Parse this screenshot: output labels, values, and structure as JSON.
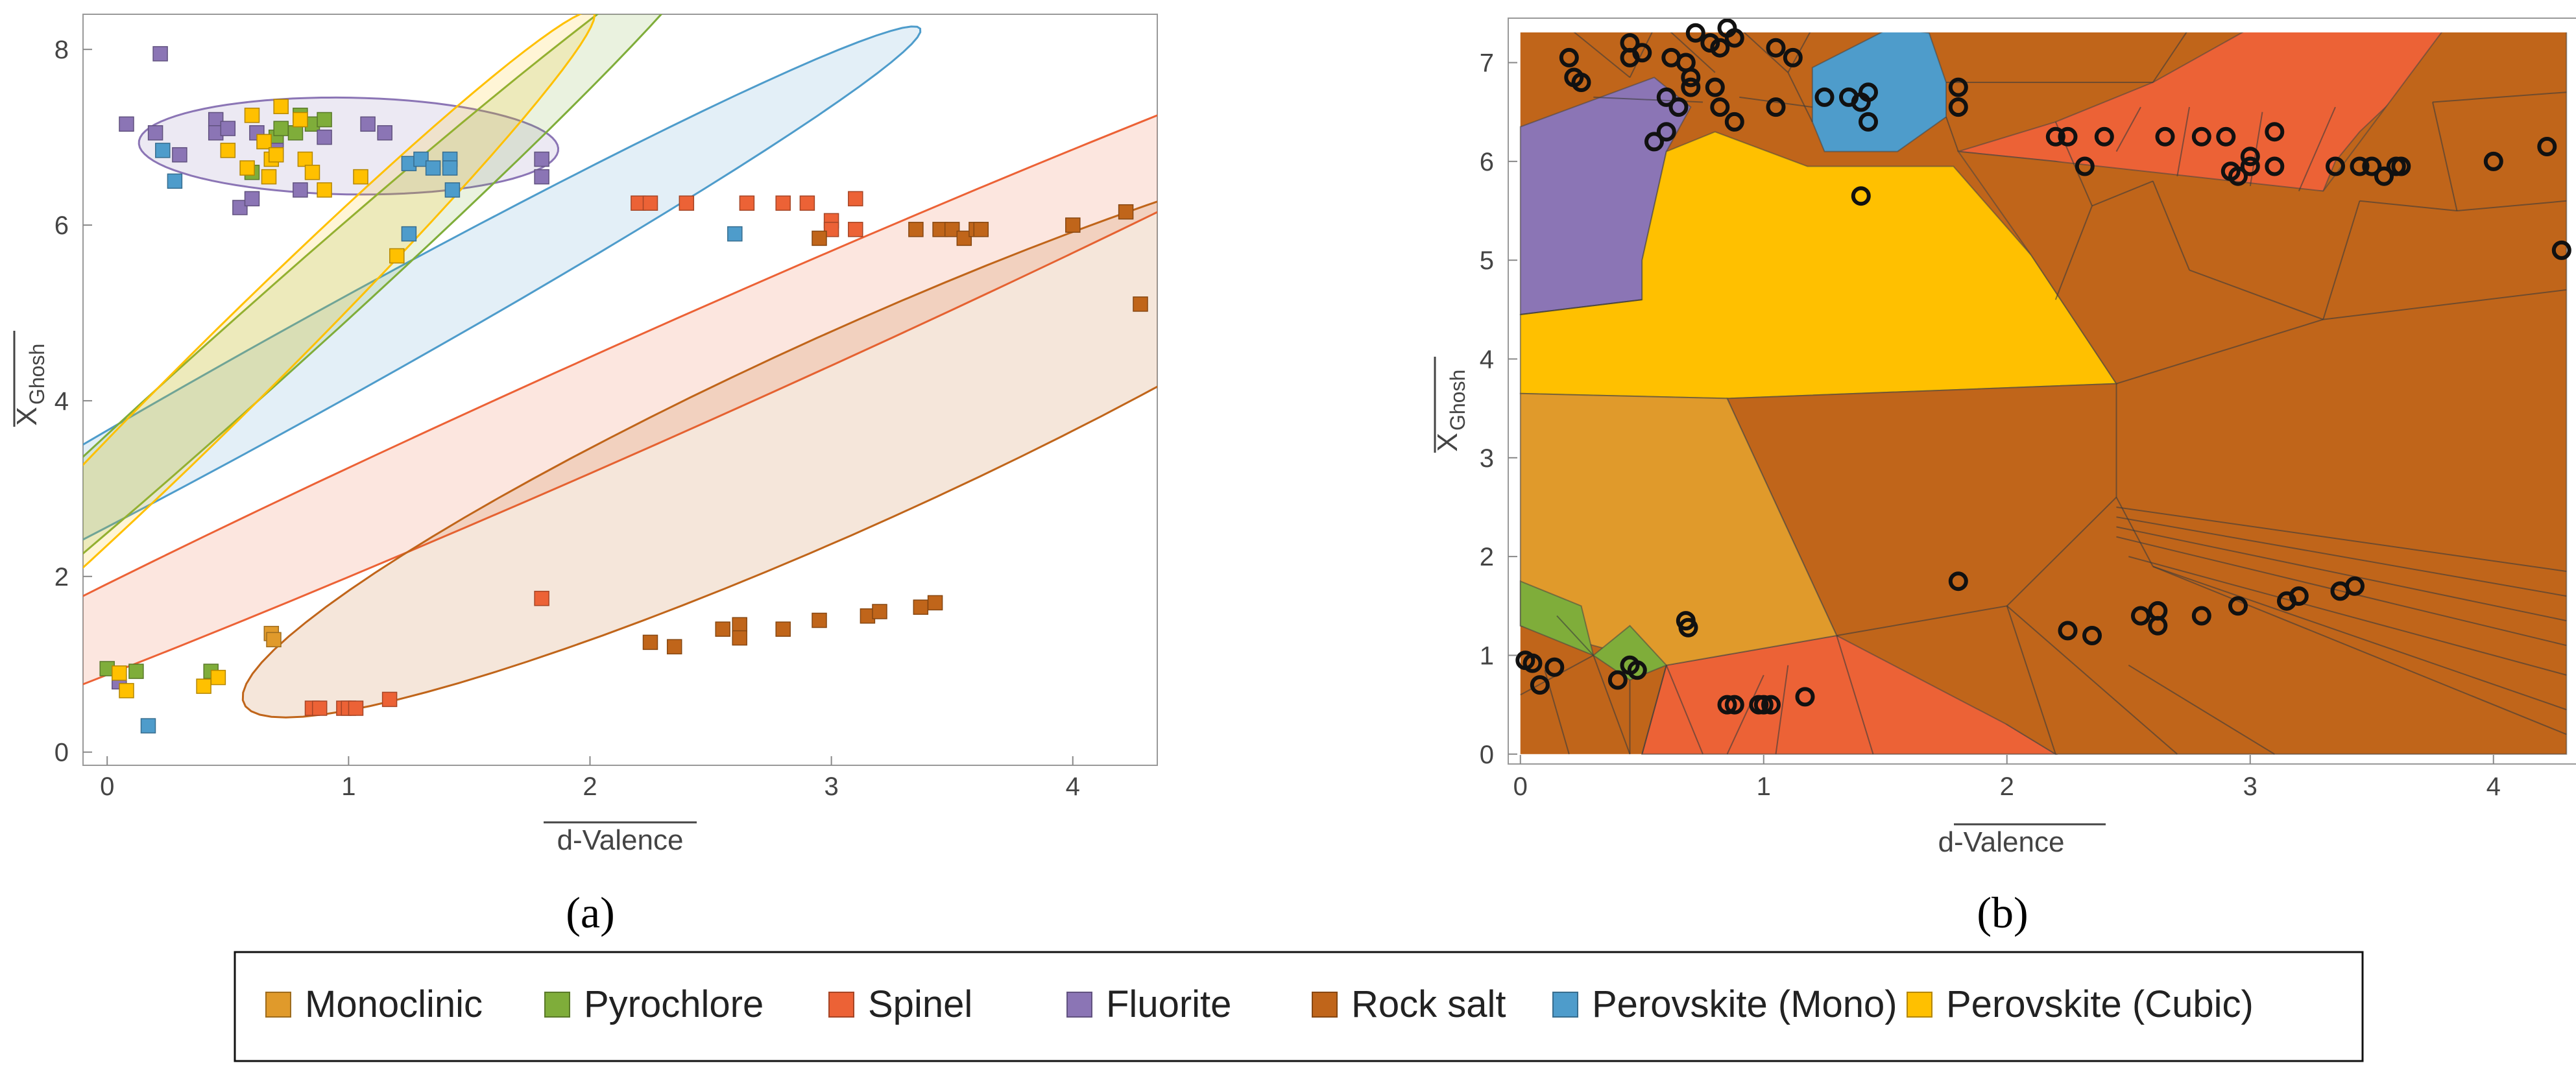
{
  "figure": {
    "panel_a_label": "(a)",
    "panel_b_label": "(b)",
    "x_label": "d-Valence",
    "y_label_main": "X",
    "y_label_sub": "Ghosh"
  },
  "legend": [
    {
      "key": "monoclinic",
      "label": "Monoclinic",
      "color": "#E09A2B"
    },
    {
      "key": "pyrochlore",
      "label": "Pyrochlore",
      "color": "#7FAD3A"
    },
    {
      "key": "spinel",
      "label": "Spinel",
      "color": "#EC6236"
    },
    {
      "key": "fluorite",
      "label": "Fluorite",
      "color": "#8B75B5"
    },
    {
      "key": "rocksalt",
      "label": "Rock salt",
      "color": "#C0651A"
    },
    {
      "key": "pmono",
      "label": "Perovskite (Mono)",
      "color": "#4E9CCB"
    },
    {
      "key": "pcubic",
      "label": "Perovskite (Cubic)",
      "color": "#FFC000"
    }
  ],
  "chart_data": [
    {
      "type": "scatter",
      "panel": "a",
      "title": "",
      "xlabel": "d-Valence",
      "ylabel": "X Ghosh",
      "xlim": [
        -0.1,
        4.35
      ],
      "ylim": [
        -0.15,
        8.4
      ],
      "x_ticks": [
        0,
        1,
        2,
        3,
        4
      ],
      "y_ticks": [
        0,
        2,
        4,
        6,
        8
      ],
      "confidence_ellipses": [
        {
          "class": "fluorite",
          "center": [
            1.0,
            6.9
          ],
          "semi_axes": [
            0.87,
            0.55
          ],
          "angle_deg": -4
        },
        {
          "class": "pmono",
          "center": [
            0.85,
            4.4
          ],
          "semi_axes": [
            4.6,
            0.32
          ],
          "angle_deg": 57
        },
        {
          "class": "pyrochlore",
          "center": [
            0.55,
            4.4
          ],
          "semi_axes": [
            5.2,
            0.22
          ],
          "angle_deg": 68
        },
        {
          "class": "pcubic",
          "center": [
            0.5,
            4.3
          ],
          "semi_axes": [
            4.4,
            0.22
          ],
          "angle_deg": 70
        },
        {
          "class": "spinel",
          "center": [
            2.3,
            4.2
          ],
          "semi_axes": [
            5.8,
            0.42
          ],
          "angle_deg": 51
        },
        {
          "class": "rocksalt",
          "center": [
            3.1,
            3.7
          ],
          "semi_axes": [
            4.1,
            0.75
          ],
          "angle_deg": 53
        }
      ],
      "series": [
        {
          "name": "Monoclinic",
          "points": [
            [
              0.68,
              1.35
            ],
            [
              0.69,
              1.28
            ]
          ]
        },
        {
          "name": "Pyrochlore",
          "points": [
            [
              0.0,
              0.95
            ],
            [
              0.12,
              0.92
            ],
            [
              0.43,
              0.92
            ],
            [
              0.65,
              6.95
            ],
            [
              0.7,
              7.0
            ],
            [
              0.72,
              7.1
            ],
            [
              0.78,
              7.05
            ],
            [
              0.8,
              7.25
            ],
            [
              0.85,
              7.15
            ],
            [
              0.9,
              7.2
            ],
            [
              0.6,
              6.6
            ]
          ]
        },
        {
          "name": "Spinel",
          "points": [
            [
              0.85,
              0.5
            ],
            [
              0.88,
              0.5
            ],
            [
              0.98,
              0.5
            ],
            [
              1.0,
              0.5
            ],
            [
              1.03,
              0.5
            ],
            [
              1.17,
              0.6
            ],
            [
              1.8,
              1.75
            ],
            [
              2.2,
              6.25
            ],
            [
              2.25,
              6.25
            ],
            [
              2.4,
              6.25
            ],
            [
              2.65,
              6.25
            ],
            [
              2.8,
              6.25
            ],
            [
              2.9,
              6.25
            ],
            [
              3.0,
              6.05
            ],
            [
              3.0,
              5.95
            ],
            [
              3.1,
              6.3
            ],
            [
              3.1,
              5.95
            ]
          ]
        },
        {
          "name": "Fluorite",
          "points": [
            [
              0.05,
              0.8
            ],
            [
              0.08,
              7.15
            ],
            [
              0.2,
              7.05
            ],
            [
              0.22,
              7.95
            ],
            [
              0.3,
              6.8
            ],
            [
              0.45,
              7.2
            ],
            [
              0.45,
              7.05
            ],
            [
              0.5,
              7.1
            ],
            [
              0.55,
              6.2
            ],
            [
              0.6,
              6.3
            ],
            [
              0.62,
              7.05
            ],
            [
              0.7,
              6.85
            ],
            [
              0.8,
              6.4
            ],
            [
              0.9,
              7.0
            ],
            [
              1.08,
              7.15
            ],
            [
              1.15,
              7.05
            ],
            [
              1.8,
              6.55
            ],
            [
              1.8,
              6.75
            ]
          ]
        },
        {
          "name": "Rock salt",
          "points": [
            [
              2.25,
              1.25
            ],
            [
              2.35,
              1.2
            ],
            [
              2.55,
              1.4
            ],
            [
              2.62,
              1.45
            ],
            [
              2.62,
              1.3
            ],
            [
              2.8,
              1.4
            ],
            [
              2.95,
              1.5
            ],
            [
              2.95,
              5.85
            ],
            [
              3.15,
              1.55
            ],
            [
              3.2,
              1.6
            ],
            [
              3.35,
              5.95
            ],
            [
              3.37,
              1.65
            ],
            [
              3.43,
              1.7
            ],
            [
              3.45,
              5.95
            ],
            [
              3.5,
              5.95
            ],
            [
              3.55,
              5.85
            ],
            [
              3.6,
              5.95
            ],
            [
              3.62,
              5.95
            ],
            [
              4.0,
              6.0
            ],
            [
              4.22,
              6.15
            ],
            [
              4.28,
              5.1
            ]
          ]
        },
        {
          "name": "Perovskite (Mono)",
          "points": [
            [
              0.17,
              0.3
            ],
            [
              0.23,
              6.85
            ],
            [
              0.28,
              6.5
            ],
            [
              1.25,
              5.9
            ],
            [
              1.25,
              6.7
            ],
            [
              1.3,
              6.75
            ],
            [
              1.35,
              6.65
            ],
            [
              1.42,
              6.75
            ],
            [
              1.42,
              6.65
            ],
            [
              1.43,
              6.4
            ],
            [
              2.6,
              5.9
            ]
          ]
        },
        {
          "name": "Perovskite (Cubic)",
          "points": [
            [
              0.05,
              0.9
            ],
            [
              0.08,
              0.7
            ],
            [
              0.4,
              0.75
            ],
            [
              0.46,
              0.85
            ],
            [
              0.5,
              6.85
            ],
            [
              0.58,
              6.65
            ],
            [
              0.6,
              7.25
            ],
            [
              0.65,
              6.95
            ],
            [
              0.67,
              6.55
            ],
            [
              0.68,
              6.75
            ],
            [
              0.7,
              6.8
            ],
            [
              0.72,
              7.35
            ],
            [
              0.8,
              7.2
            ],
            [
              0.82,
              6.75
            ],
            [
              0.85,
              6.6
            ],
            [
              0.9,
              6.4
            ],
            [
              1.05,
              6.55
            ],
            [
              1.2,
              5.65
            ]
          ]
        }
      ]
    },
    {
      "type": "scatter",
      "panel": "b",
      "title": "",
      "xlabel": "d-Valence",
      "ylabel": "X Ghosh",
      "xlim": [
        -0.05,
        4.35
      ],
      "ylim": [
        -0.1,
        7.45
      ],
      "x_ticks": [
        0,
        1,
        2,
        3,
        4
      ],
      "y_ticks": [
        0,
        1,
        2,
        3,
        4,
        5,
        6,
        7
      ],
      "region_classes": [
        {
          "class": "fluorite",
          "polygon": [
            [
              0,
              4.45
            ],
            [
              0,
              6.35
            ],
            [
              0.55,
              6.85
            ],
            [
              0.7,
              6.55
            ],
            [
              0.6,
              6.1
            ],
            [
              0.5,
              5.0
            ],
            [
              0.5,
              4.6
            ]
          ]
        },
        {
          "class": "pcubic",
          "polygon": [
            [
              0,
              3.65
            ],
            [
              0,
              4.45
            ],
            [
              0.5,
              4.6
            ],
            [
              0.5,
              5.0
            ],
            [
              0.6,
              6.1
            ],
            [
              0.8,
              6.3
            ],
            [
              1.18,
              5.95
            ],
            [
              1.78,
              5.95
            ],
            [
              2.1,
              5.05
            ],
            [
              2.45,
              3.75
            ],
            [
              0.85,
              3.6
            ]
          ]
        },
        {
          "class": "pmono",
          "polygon": [
            [
              1.2,
              6.4
            ],
            [
              1.2,
              6.95
            ],
            [
              1.52,
              7.35
            ],
            [
              1.68,
              7.3
            ],
            [
              1.75,
              6.8
            ],
            [
              1.75,
              6.45
            ],
            [
              1.55,
              6.1
            ],
            [
              1.25,
              6.1
            ]
          ]
        },
        {
          "class": "spinel",
          "polygon": [
            [
              1.8,
              6.1
            ],
            [
              2.2,
              6.4
            ],
            [
              2.6,
              6.8
            ],
            [
              3.0,
              7.35
            ],
            [
              3.8,
              7.35
            ],
            [
              3.75,
              7.0
            ],
            [
              3.45,
              6.3
            ],
            [
              3.35,
              6.0
            ],
            [
              3.3,
              5.7
            ],
            [
              3.0,
              5.7
            ],
            [
              2.6,
              5.8
            ],
            [
              2.2,
              6.0
            ]
          ]
        },
        {
          "class": "spinel",
          "polygon": [
            [
              0.5,
              0.0
            ],
            [
              0.6,
              0.9
            ],
            [
              1.3,
              1.2
            ],
            [
              1.75,
              0.85
            ],
            [
              2.0,
              0.3
            ],
            [
              2.2,
              0.0
            ]
          ]
        },
        {
          "class": "rocksalt",
          "polygon": [
            [
              1.8,
              6.1
            ],
            [
              2.2,
              6.0
            ],
            [
              3.3,
              5.7
            ],
            [
              3.8,
              7.35
            ],
            [
              4.3,
              7.35
            ],
            [
              4.3,
              0.0
            ],
            [
              2.2,
              0.0
            ],
            [
              2.0,
              0.3
            ],
            [
              1.3,
              1.2
            ],
            [
              0.85,
              3.6
            ],
            [
              2.45,
              3.75
            ],
            [
              2.1,
              5.05
            ]
          ]
        },
        {
          "class": "monoclinic",
          "polygon": [
            [
              0,
              3.65
            ],
            [
              0.85,
              3.6
            ],
            [
              1.3,
              1.2
            ],
            [
              0.6,
              0.9
            ],
            [
              0,
              1.3
            ]
          ]
        },
        {
          "class": "pyrochlore",
          "polygon": [
            [
              0,
              1.3
            ],
            [
              0,
              1.75
            ],
            [
              0.25,
              1.5
            ],
            [
              0.3,
              1.0
            ]
          ]
        },
        {
          "class": "pyrochlore",
          "polygon": [
            [
              0.3,
              1.0
            ],
            [
              0.45,
              1.3
            ],
            [
              0.6,
              0.9
            ],
            [
              0.45,
              0.75
            ]
          ]
        }
      ],
      "points": [
        [
          0.02,
          0.95
        ],
        [
          0.05,
          0.92
        ],
        [
          0.08,
          0.7
        ],
        [
          0.14,
          0.88
        ],
        [
          0.4,
          0.75
        ],
        [
          0.45,
          0.9
        ],
        [
          0.48,
          0.85
        ],
        [
          0.68,
          1.35
        ],
        [
          0.69,
          1.28
        ],
        [
          0.85,
          0.5
        ],
        [
          0.88,
          0.5
        ],
        [
          0.98,
          0.5
        ],
        [
          1.0,
          0.5
        ],
        [
          1.03,
          0.5
        ],
        [
          1.17,
          0.58
        ],
        [
          1.8,
          1.75
        ],
        [
          2.25,
          1.25
        ],
        [
          2.35,
          1.2
        ],
        [
          2.55,
          1.4
        ],
        [
          2.62,
          1.45
        ],
        [
          2.62,
          1.3
        ],
        [
          2.8,
          1.4
        ],
        [
          2.95,
          1.5
        ],
        [
          3.15,
          1.55
        ],
        [
          3.2,
          1.6
        ],
        [
          3.37,
          1.65
        ],
        [
          3.43,
          1.7
        ],
        [
          0.2,
          7.05
        ],
        [
          0.22,
          6.85
        ],
        [
          0.25,
          6.8
        ],
        [
          0.45,
          7.2
        ],
        [
          0.45,
          7.05
        ],
        [
          0.5,
          7.1
        ],
        [
          0.55,
          6.2
        ],
        [
          0.6,
          6.3
        ],
        [
          0.62,
          7.05
        ],
        [
          0.7,
          6.85
        ],
        [
          0.7,
          6.75
        ],
        [
          0.72,
          7.3
        ],
        [
          0.78,
          7.2
        ],
        [
          0.82,
          7.15
        ],
        [
          0.85,
          7.35
        ],
        [
          0.88,
          7.25
        ],
        [
          0.8,
          6.75
        ],
        [
          0.82,
          6.55
        ],
        [
          0.88,
          6.4
        ],
        [
          0.6,
          6.65
        ],
        [
          0.65,
          6.55
        ],
        [
          0.68,
          7.0
        ],
        [
          1.05,
          7.15
        ],
        [
          1.12,
          7.05
        ],
        [
          1.05,
          6.55
        ],
        [
          1.25,
          6.65
        ],
        [
          1.35,
          6.65
        ],
        [
          1.4,
          6.6
        ],
        [
          1.43,
          6.7
        ],
        [
          1.43,
          6.4
        ],
        [
          1.4,
          5.65
        ],
        [
          1.8,
          6.55
        ],
        [
          1.8,
          6.75
        ],
        [
          2.2,
          6.25
        ],
        [
          2.25,
          6.25
        ],
        [
          2.32,
          5.95
        ],
        [
          2.4,
          6.25
        ],
        [
          2.65,
          6.25
        ],
        [
          2.8,
          6.25
        ],
        [
          2.9,
          6.25
        ],
        [
          2.92,
          5.9
        ],
        [
          2.95,
          5.85
        ],
        [
          3.0,
          6.05
        ],
        [
          3.0,
          5.95
        ],
        [
          3.1,
          6.3
        ],
        [
          3.1,
          5.95
        ],
        [
          3.35,
          5.95
        ],
        [
          3.45,
          5.95
        ],
        [
          3.5,
          5.95
        ],
        [
          3.55,
          5.85
        ],
        [
          3.6,
          5.95
        ],
        [
          3.62,
          5.95
        ],
        [
          4.0,
          6.0
        ],
        [
          4.22,
          6.15
        ],
        [
          4.28,
          5.1
        ]
      ]
    }
  ]
}
